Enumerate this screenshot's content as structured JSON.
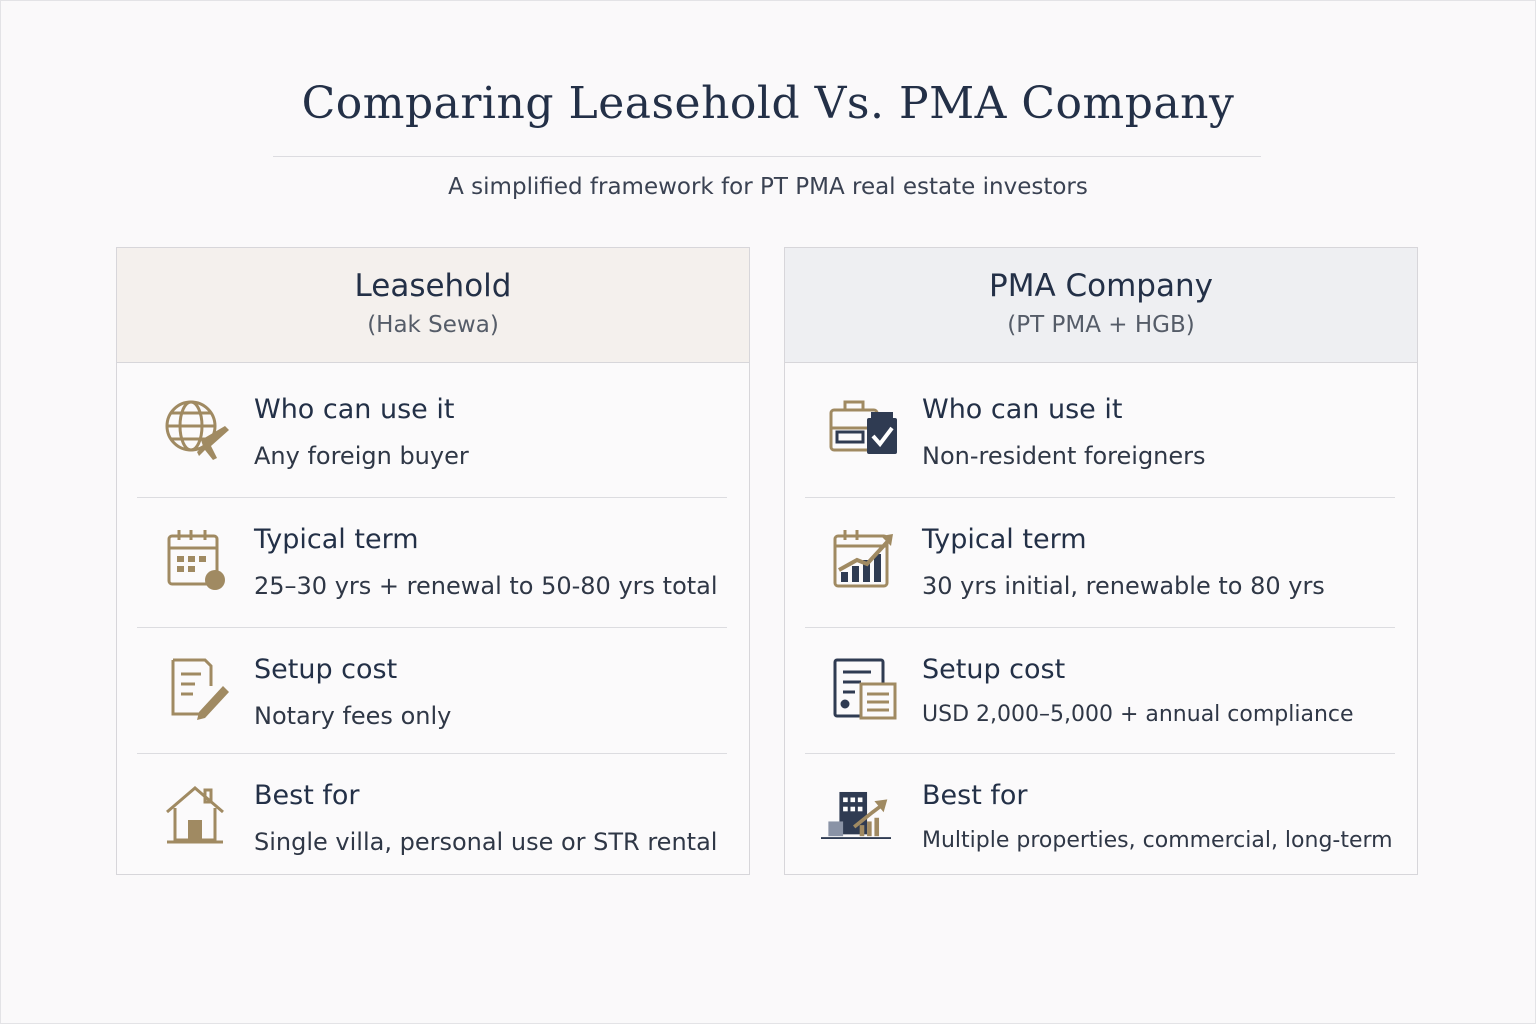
{
  "title": "Comparing Leasehold Vs. PMA Company",
  "subtitle": "A simplified framework for PT PMA real estate investors",
  "colors": {
    "gold": "#a08a62",
    "navy": "#2f3b52",
    "left_header": "#f4f0ed",
    "right_header": "#eeeff2"
  },
  "columns": [
    {
      "title": "Leasehold",
      "subtitle": "(Hak Sewa)",
      "rows": [
        {
          "label": "Who can use it",
          "value": "Any foreign buyer",
          "icon": "globe-plane-icon"
        },
        {
          "label": "Typical term",
          "value": "25–30 yrs + renewal to 50-80 yrs total",
          "icon": "calendar-icon"
        },
        {
          "label": "Setup cost",
          "value": "Notary fees only",
          "icon": "document-pen-icon"
        },
        {
          "label": "Best for",
          "value": "Single villa, personal use or STR rental",
          "icon": "house-icon"
        }
      ]
    },
    {
      "title": "PMA Company",
      "subtitle": "(PT PMA + HGB)",
      "rows": [
        {
          "label": "Who can use it",
          "value": "Non-resident foreigners",
          "icon": "briefcase-check-icon"
        },
        {
          "label": "Typical term",
          "value": "30 yrs initial, renewable to 80 yrs",
          "icon": "calendar-growth-chart-icon"
        },
        {
          "label": "Setup cost",
          "value": "USD 2,000–5,000 + annual compliance",
          "icon": "documents-icon"
        },
        {
          "label": "Best for",
          "value": "Multiple properties, commercial, long-term",
          "icon": "buildings-growth-icon"
        }
      ]
    }
  ]
}
